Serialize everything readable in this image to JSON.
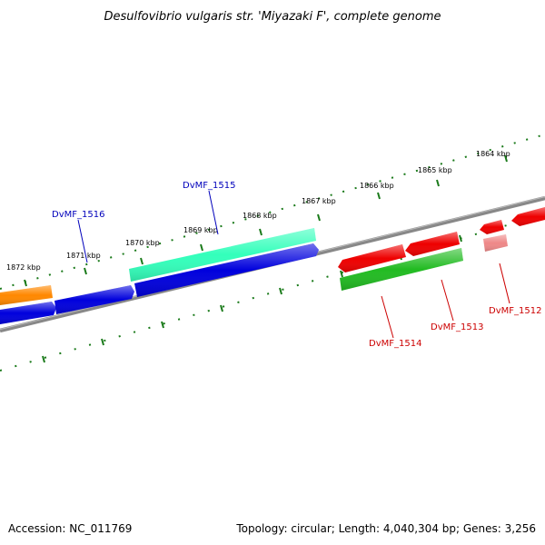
{
  "title": "Desulfovibrio vulgaris str. 'Miyazaki F', complete genome",
  "footer": {
    "accession": "Accession: NC_011769",
    "summary": "Topology: circular; Length: 4,040,304 bp; Genes: 3,256"
  },
  "colors": {
    "backbone": "#888888",
    "tick": "#1a7a1a",
    "blue_label": "#0000bb",
    "red_label": "#cc0000"
  },
  "tick_labels": [
    "1864 kbp",
    "1865 kbp",
    "1866 kbp",
    "1867 kbp",
    "1868 kbp",
    "1869 kbp",
    "1870 kbp",
    "1871 kbp",
    "1872 kbp"
  ],
  "genes": [
    {
      "id": "orange",
      "color": "#ff8800"
    },
    {
      "id": "blue-left",
      "color": "#0000dd"
    },
    {
      "id": "blue-2",
      "color": "#0000dd"
    },
    {
      "id": "blue-3",
      "color": "#0000dd"
    },
    {
      "id": "teal-1515",
      "color": "#33ffbb"
    },
    {
      "id": "red-1",
      "color": "#ee0000"
    },
    {
      "id": "red-2",
      "color": "#ee0000"
    },
    {
      "id": "green-1513",
      "color": "#22bb22"
    },
    {
      "id": "red-small",
      "color": "#ee0000"
    },
    {
      "id": "pink-1512",
      "color": "#ee8888"
    },
    {
      "id": "red-right",
      "color": "#ee0000"
    }
  ],
  "gene_labels": [
    {
      "text": "DvMF_1515",
      "color": "#0000bb"
    },
    {
      "text": "DvMF_1516",
      "color": "#0000bb"
    },
    {
      "text": "DvMF_1514",
      "color": "#cc0000"
    },
    {
      "text": "DvMF_1513",
      "color": "#cc0000"
    },
    {
      "text": "DvMF_1512",
      "color": "#cc0000"
    }
  ]
}
